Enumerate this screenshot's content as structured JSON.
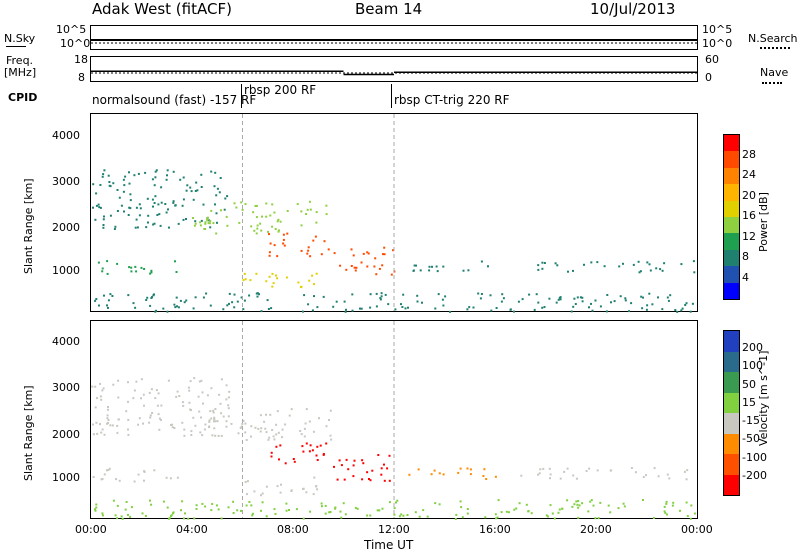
{
  "header": {
    "station": "Adak West (fitACF)",
    "beam": "Beam 14",
    "date": "10/Jul/2013"
  },
  "strip_labels": {
    "nsky": "N.Sky",
    "freq_l1": "Freq.",
    "freq_l2": "[MHz]",
    "cpid": "CPID",
    "nsearch": "N.Search",
    "nave": "Nave",
    "noise_ticks_left": [
      "10^5",
      "10^0"
    ],
    "noise_ticks_right": [
      "10^5",
      "10^0"
    ],
    "freq_ticks": [
      "18",
      "8"
    ],
    "nave_ticks": [
      "60",
      "0"
    ]
  },
  "cpid_segments": [
    {
      "label": "normalsound (fast) -157 RF"
    },
    {
      "label": "rbsp 200 RF"
    },
    {
      "label": "rbsp CT-trig 220 RF"
    }
  ],
  "power_colorbar": {
    "title": "Power [dB]",
    "ticks": [
      "28",
      "24",
      "20",
      "16",
      "12",
      "8",
      "4"
    ],
    "colors": [
      "#ff0000",
      "#ff4a00",
      "#ff8200",
      "#ffb400",
      "#e0d000",
      "#8fd040",
      "#1fa050",
      "#208070",
      "#2050b0",
      "#0000ff"
    ]
  },
  "velocity_colorbar": {
    "title": "Velocity [m s^-1]",
    "ticks": [
      "200",
      "100",
      "50",
      "15",
      "-15",
      "-50",
      "-100",
      "-200"
    ],
    "colors": [
      "#2040c0",
      "#2a6a8a",
      "#3a9a50",
      "#80d040",
      "#c8c8c0",
      "#ff8c00",
      "#ff5000",
      "#ff0000"
    ]
  },
  "axes": {
    "ylabel": "Slant Range [km]",
    "xlabel": "Time UT",
    "yticks": [
      "4000",
      "3000",
      "2000",
      "1000"
    ],
    "xticks": [
      "00:00",
      "04:00",
      "08:00",
      "12:00",
      "16:00",
      "20:00",
      "00:00"
    ]
  },
  "chart_data": {
    "type": "heatmap",
    "title": "Adak West (fitACF)  Beam 14  10/Jul/2013",
    "xlabel": "Time UT",
    "ylabel": "Slant Range [km]",
    "xlim": [
      0,
      24
    ],
    "ylim": [
      180,
      4500
    ],
    "panels": [
      {
        "name": "Power",
        "units": "dB",
        "range": [
          0,
          30
        ]
      },
      {
        "name": "Velocity",
        "units": "m s^-1",
        "range": [
          -200,
          200
        ]
      }
    ],
    "cpid_transitions_hours": [
      6,
      12
    ],
    "frequency_mhz": [
      {
        "x": [
          0,
          10
        ],
        "y": 12
      },
      {
        "x": [
          10,
          12
        ],
        "y": 10.5
      },
      {
        "x": [
          12,
          24
        ],
        "y": 11.5
      }
    ],
    "scatter_regions": [
      {
        "t": [
          0.0,
          3.5
        ],
        "r_km": [
          1000,
          1300
        ],
        "power_db": 10,
        "velocity": 0
      },
      {
        "t": [
          0.0,
          5.5
        ],
        "r_km": [
          2000,
          3300
        ],
        "power_db": 8,
        "velocity": 0
      },
      {
        "t": [
          4.0,
          9.5
        ],
        "r_km": [
          1900,
          2600
        ],
        "power_db": 14,
        "velocity": 0
      },
      {
        "t": [
          6.0,
          9.0
        ],
        "r_km": [
          700,
          1100
        ],
        "power_db": 16,
        "velocity": 0
      },
      {
        "t": [
          7.0,
          9.5
        ],
        "r_km": [
          1400,
          1900
        ],
        "power_db": 28,
        "velocity": -200
      },
      {
        "t": [
          9.5,
          12.0
        ],
        "r_km": [
          1000,
          1600
        ],
        "power_db": 26,
        "velocity": -200
      },
      {
        "t": [
          12.5,
          16.0
        ],
        "r_km": [
          1050,
          1300
        ],
        "power_db": 8,
        "velocity": -100
      },
      {
        "t": [
          17.0,
          24.0
        ],
        "r_km": [
          1050,
          1300
        ],
        "power_db": 6,
        "velocity": 0
      },
      {
        "t": [
          0.0,
          24.0
        ],
        "r_km": [
          180,
          600
        ],
        "power_db": 8,
        "velocity": 15
      }
    ]
  }
}
